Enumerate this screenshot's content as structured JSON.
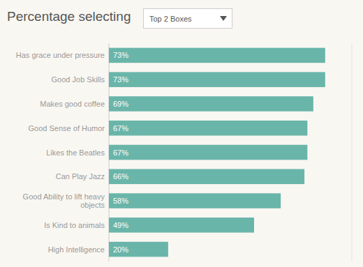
{
  "chart_data": {
    "type": "bar",
    "orientation": "horizontal",
    "title": "Percentage selecting",
    "annotations": [
      "Top 2 Boxes"
    ],
    "categories": [
      "Has grace under pressure",
      "Good Job Skills",
      "Makes good coffee",
      "Good Sense of Humor",
      "Likes the Beatles",
      "Can Play Jazz",
      "Good Ability to lift heavy\nobjects",
      "Is Kind to animals",
      "High Intelligence"
    ],
    "values": [
      73,
      73,
      69,
      67,
      67,
      66,
      58,
      49,
      20
    ],
    "value_labels": [
      "73%",
      "73%",
      "69%",
      "67%",
      "67%",
      "66%",
      "58%",
      "49%",
      "20%"
    ],
    "color": "#6ab5aa",
    "xlim": [
      0,
      82
    ],
    "data_labels": true,
    "tick_labels": "y",
    "grid": false
  }
}
